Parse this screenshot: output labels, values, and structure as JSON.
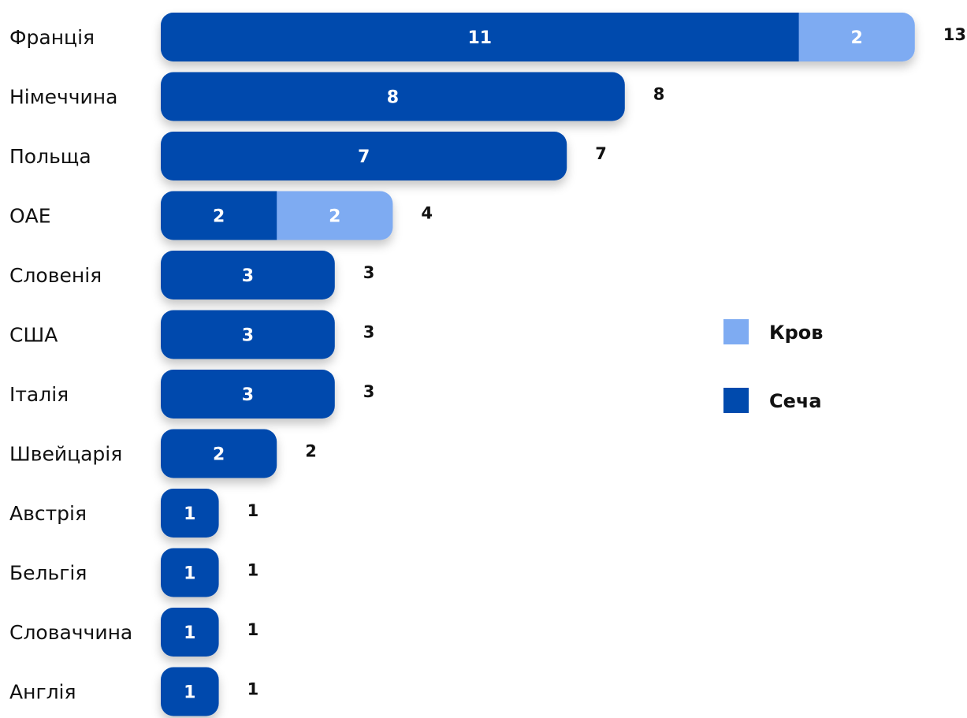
{
  "chart_data": {
    "type": "bar",
    "orientation": "horizontal",
    "stacked": true,
    "categories": [
      "Франція",
      "Німеччина",
      "Польща",
      "ОАЕ",
      "Словенія",
      "США",
      "Італія",
      "Швейцарія",
      "Австрія",
      "Бельгія",
      "Словаччина",
      "Англія"
    ],
    "series": [
      {
        "name": "Сеча",
        "color": "#004AAD",
        "values": [
          11,
          8,
          7,
          2,
          3,
          3,
          3,
          2,
          1,
          1,
          1,
          1
        ]
      },
      {
        "name": "Кров",
        "color": "#7EABF2",
        "values": [
          2,
          0,
          0,
          2,
          0,
          0,
          0,
          0,
          0,
          0,
          0,
          0
        ]
      }
    ],
    "totals": [
      13,
      8,
      7,
      4,
      3,
      3,
      3,
      2,
      1,
      1,
      1,
      1
    ],
    "legend_order": [
      "Кров",
      "Сеча"
    ],
    "legend_position": "right",
    "grid": false,
    "xlim": [
      0,
      13
    ]
  }
}
